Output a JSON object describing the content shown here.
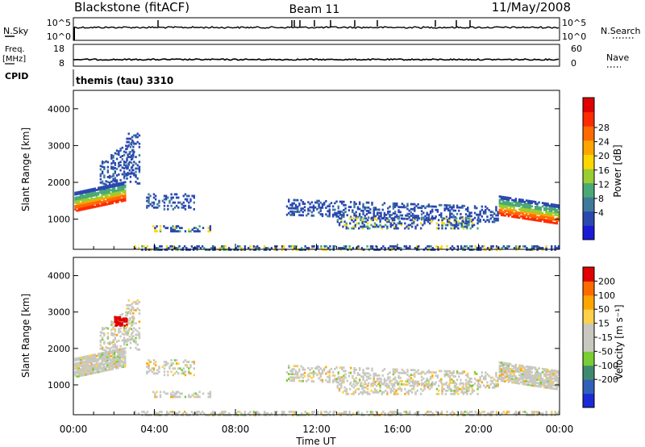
{
  "header": {
    "station": "Blackstone (fitACF)",
    "beam": "Beam 11",
    "date": "11/May/2008"
  },
  "panel_labels": {
    "nsky": "N.Sky",
    "nsky_top": "10^5",
    "nsky_bottom": "10^0",
    "nsearch": "N.Search",
    "nsearch_top": "10^5",
    "nsearch_bottom": "10^0",
    "freq_a": "Freq.",
    "freq_b": "[MHz]",
    "freq_top": "18",
    "freq_bottom": "8",
    "nave": "Nave",
    "nave_top": "60",
    "nave_bottom": "0",
    "cpid": "CPID",
    "cpid_value": "themis (tau) 3310"
  },
  "chart_data": [
    {
      "type": "heatmap",
      "name": "power",
      "ylabel": "Slant Range [km]",
      "ylim": [
        180,
        4500
      ],
      "yticks": [
        "1000",
        "2000",
        "3000",
        "4000"
      ],
      "xticks": [
        "00:00",
        "04:00",
        "08:00",
        "12:00",
        "16:00",
        "20:00",
        "00:00"
      ],
      "colorbar_label": "Power [dB]",
      "colorbar_ticks": [
        "4",
        "8",
        "12",
        "16",
        "20",
        "24",
        "28"
      ],
      "colors": [
        "#1a1ad6",
        "#2a48b0",
        "#3e7a9a",
        "#4aa877",
        "#9acd32",
        "#ffd700",
        "#ffa500",
        "#ff6a00",
        "#ff2a00",
        "#e00000"
      ]
    },
    {
      "type": "heatmap",
      "name": "velocity",
      "ylabel": "Slant Range [km]",
      "ylim": [
        180,
        4500
      ],
      "yticks": [
        "1000",
        "2000",
        "3000",
        "4000"
      ],
      "xticks": [
        "00:00",
        "04:00",
        "08:00",
        "12:00",
        "16:00",
        "20:00",
        "00:00"
      ],
      "xlabel": "Time UT",
      "colorbar_label": "Velocity [m s⁻¹]",
      "colorbar_ticks": [
        "200",
        "100",
        "50",
        "15",
        "-15",
        "-50",
        "-100",
        "-200"
      ],
      "colors": [
        "#1a2ad6",
        "#3060b8",
        "#3e8a70",
        "#7acd32",
        "#c8c8c0",
        "#c8c8c0",
        "#ffd04a",
        "#ffa500",
        "#ff6a00",
        "#e00000"
      ]
    }
  ]
}
